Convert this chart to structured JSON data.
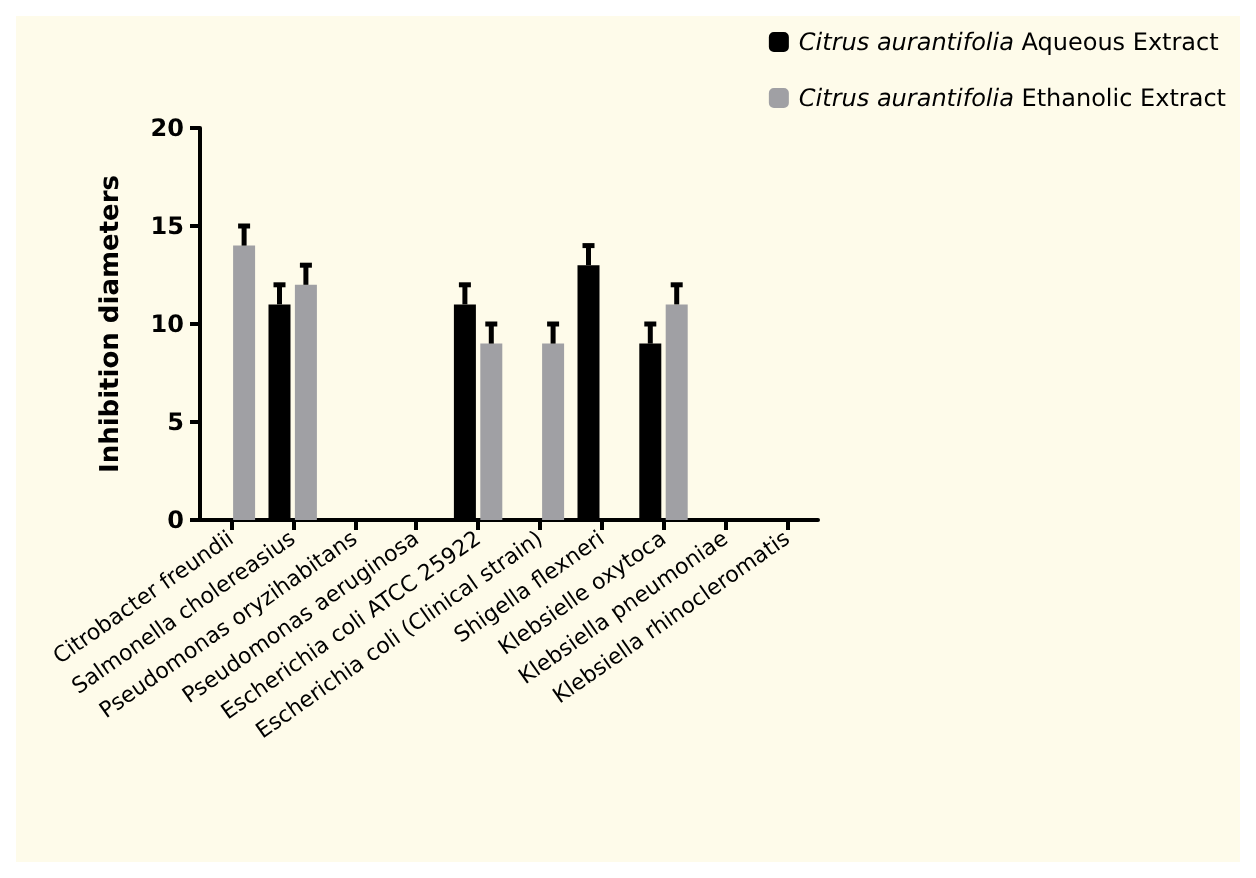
{
  "chart_data": {
    "type": "bar",
    "ylabel": "Inhibition diameters",
    "categories": [
      "Citrobacter freundii",
      "Salmonella cholereasius",
      "Pseudomonas oryzihabitans",
      "Pseudomonas aeruginosa",
      "Escherichia coli ATCC 25922",
      "Escherichia coli (Clinical strain)",
      "Shigella flexneri",
      "Klebsielle oxytoca",
      "Klebsiella pneumoniae",
      "Klebsiella rhinocleromatis"
    ],
    "series": [
      {
        "name": "Citrus aurantifolia Aqueous Extract",
        "color": "#000000",
        "values": [
          null,
          11,
          null,
          null,
          11,
          null,
          13,
          9,
          null,
          null
        ],
        "errors": [
          null,
          [
            11,
            12
          ],
          null,
          null,
          [
            11,
            12
          ],
          null,
          [
            13,
            14
          ],
          [
            9,
            10
          ],
          null,
          null
        ]
      },
      {
        "name": "Citrus aurantifolia Ethanolic Extract",
        "color": "#a0a0a4",
        "values": [
          14,
          12,
          null,
          null,
          9,
          9,
          null,
          11,
          null,
          null
        ],
        "errors": [
          [
            14,
            15
          ],
          [
            12,
            13
          ],
          null,
          null,
          [
            9,
            10
          ],
          [
            9,
            10
          ],
          null,
          [
            11,
            12
          ],
          null,
          null
        ]
      }
    ],
    "ylim": [
      0,
      20
    ],
    "yticks": [
      0,
      5,
      10,
      15,
      20
    ],
    "grid": false,
    "legend": "top right"
  }
}
